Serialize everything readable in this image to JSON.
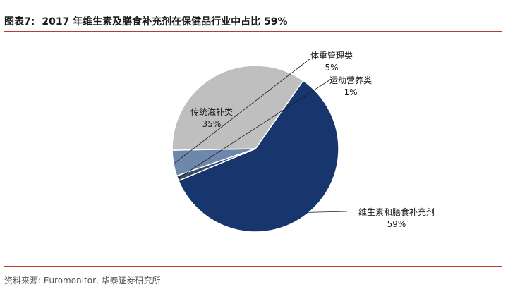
{
  "title": {
    "label": "图表7:",
    "text": "2017 年维生素及膳食补充剂在保健品行业中占比 59%"
  },
  "source": "资料来源: Euromonitor, 华泰证券研究所",
  "chart_data": {
    "type": "pie",
    "categories": [
      "维生素和膳食补充剂",
      "运动营养类",
      "体重管理类",
      "传统滋补类"
    ],
    "values": [
      59,
      1,
      5,
      35
    ],
    "value_labels": [
      "59%",
      "1%",
      "5%",
      "35%"
    ],
    "colors": [
      "#17366e",
      "#384a66",
      "#6d87ad",
      "#bfbfbf"
    ],
    "legend": "none"
  }
}
